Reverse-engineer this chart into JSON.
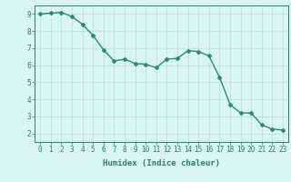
{
  "x": [
    0,
    1,
    2,
    3,
    4,
    5,
    6,
    7,
    8,
    9,
    10,
    11,
    12,
    13,
    14,
    15,
    16,
    17,
    18,
    19,
    20,
    21,
    22,
    23
  ],
  "y": [
    9.0,
    9.05,
    9.1,
    8.85,
    8.4,
    7.75,
    6.9,
    6.25,
    6.35,
    6.1,
    6.05,
    5.85,
    6.35,
    6.4,
    6.85,
    6.8,
    6.55,
    5.3,
    3.7,
    3.2,
    3.2,
    2.5,
    2.25,
    2.2
  ],
  "line_color": "#2e8b6e",
  "marker": "D",
  "marker_size": 2.0,
  "line_width": 1.0,
  "background_color": "#d8f5f0",
  "grid_color": "#b8ddd8",
  "xlabel": "Humidex (Indice chaleur)",
  "xlim": [
    -0.5,
    23.5
  ],
  "ylim": [
    1.5,
    9.5
  ],
  "xticks": [
    0,
    1,
    2,
    3,
    4,
    5,
    6,
    7,
    8,
    9,
    10,
    11,
    12,
    13,
    14,
    15,
    16,
    17,
    18,
    19,
    20,
    21,
    22,
    23
  ],
  "yticks": [
    2,
    3,
    4,
    5,
    6,
    7,
    8,
    9
  ],
  "tick_fontsize": 5.5,
  "xlabel_fontsize": 6.5,
  "tick_color": "#2e7d6e",
  "spine_color": "#2e7d6e"
}
